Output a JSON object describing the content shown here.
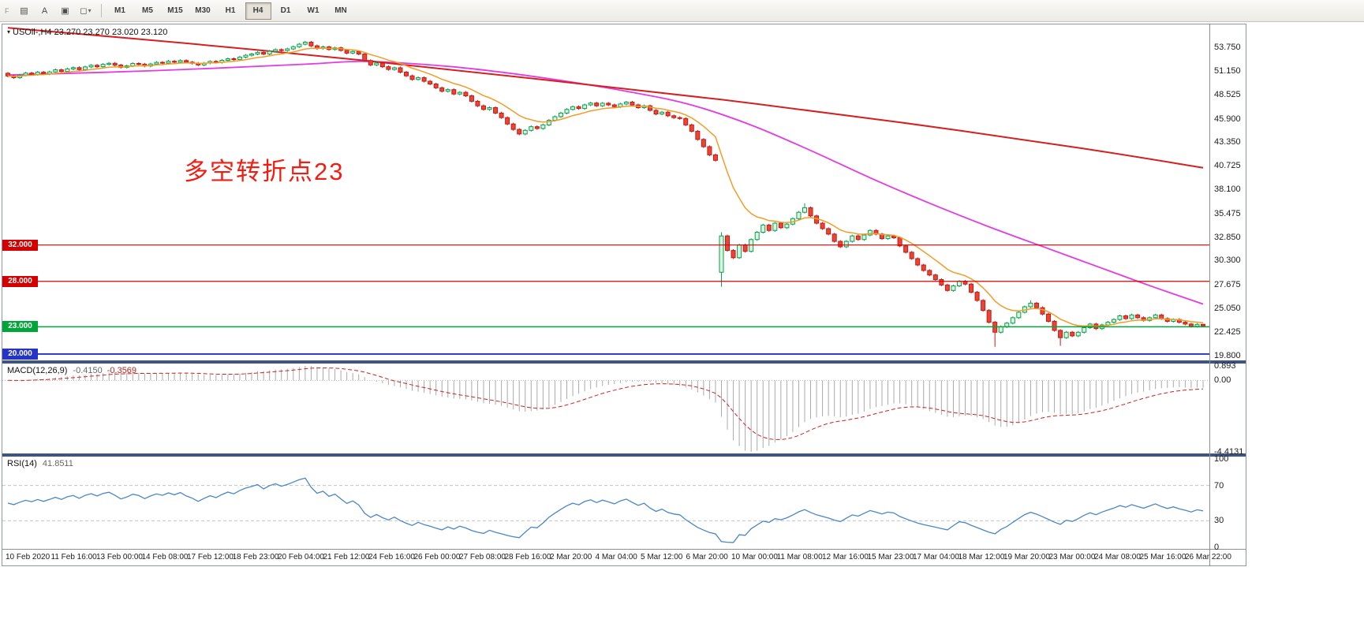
{
  "toolbar": {
    "handle_label": "F",
    "icon_buttons": [
      {
        "name": "objects-list-icon",
        "glyph": "▤"
      },
      {
        "name": "text-label-icon",
        "glyph": "A"
      },
      {
        "name": "text-box-icon",
        "glyph": "▣"
      },
      {
        "name": "shapes-dropdown-icon",
        "glyph": "◻",
        "caret": "▾"
      }
    ],
    "timeframes": [
      {
        "label": "M1"
      },
      {
        "label": "M5"
      },
      {
        "label": "M15"
      },
      {
        "label": "M30"
      },
      {
        "label": "H1"
      },
      {
        "label": "H4",
        "active": true
      },
      {
        "label": "D1"
      },
      {
        "label": "W1"
      },
      {
        "label": "MN"
      }
    ]
  },
  "chart_data": [
    {
      "type": "candlestick",
      "symbol": "USOil-",
      "timeframe": "H4",
      "main_title": {
        "marker": "▾",
        "text": "USOil-,H4  23.270 23.270 23.020 23.120"
      },
      "ohlc_quote": {
        "open": "23.270",
        "high": "23.270",
        "low": "23.020",
        "close": "23.120"
      },
      "annotation": {
        "text": "多空转折点23",
        "color": "#f21d12"
      },
      "ylim": [
        19.3,
        56.1
      ],
      "y_ticks": [
        "53.750",
        "51.150",
        "48.525",
        "45.900",
        "43.350",
        "40.725",
        "38.100",
        "35.475",
        "32.850",
        "30.300",
        "27.675",
        "25.050",
        "22.425",
        "19.800"
      ],
      "x_labels": [
        "10 Feb 2020",
        "11 Feb 16:00",
        "13 Feb 00:00",
        "14 Feb 08:00",
        "17 Feb 12:00",
        "18 Feb 23:00",
        "20 Feb 04:00",
        "21 Feb 12:00",
        "24 Feb 16:00",
        "26 Feb 00:00",
        "27 Feb 08:00",
        "28 Feb 16:00",
        "2 Mar 20:00",
        "4 Mar 04:00",
        "5 Mar 12:00",
        "6 Mar 20:00",
        "10 Mar 00:00",
        "11 Mar 08:00",
        "12 Mar 16:00",
        "15 Mar 23:00",
        "17 Mar 04:00",
        "18 Mar 12:00",
        "19 Mar 20:00",
        "23 Mar 00:00",
        "24 Mar 08:00",
        "25 Mar 16:00",
        "26 Mar 22:00"
      ],
      "levels": [
        {
          "price": 32.0,
          "label": "32.000",
          "color": "#d40000",
          "width": 1.2
        },
        {
          "price": 28.0,
          "label": "28.000",
          "color": "#d40000",
          "width": 1.2
        },
        {
          "price": 23.0,
          "label": "23.000",
          "color": "#00a637",
          "width": 1.6
        },
        {
          "price": 20.0,
          "label": "20.000",
          "color": "#2633c8",
          "width": 1.8
        }
      ],
      "colors": {
        "up_stroke": "#0b9e4d",
        "up_fill": "#d9f5e1",
        "down_stroke": "#c41a10",
        "down_fill": "#e8463a",
        "ma_fast": "#f09d28",
        "ma_mid": "#e23ce2",
        "ma_slow": "#d42020"
      },
      "moving_averages": [
        {
          "name": "fast-ma",
          "type": "ema",
          "period": 10
        },
        {
          "name": "mid-ma",
          "type": "points",
          "points": [
            [
              0,
              50.7
            ],
            [
              25,
              51.2
            ],
            [
              50,
              51.9
            ],
            [
              60,
              52.2
            ],
            [
              75,
              51.6
            ],
            [
              90,
              50.4
            ],
            [
              105,
              48.8
            ],
            [
              115,
              47.4
            ],
            [
              125,
              45.2
            ],
            [
              135,
              42.4
            ],
            [
              145,
              39.4
            ],
            [
              155,
              36.6
            ],
            [
              165,
              34.0
            ],
            [
              175,
              31.6
            ],
            [
              185,
              29.2
            ],
            [
              193,
              27.3
            ],
            [
              201,
              25.5
            ]
          ]
        },
        {
          "name": "slow-ma",
          "type": "points",
          "points": [
            [
              0,
              55.9
            ],
            [
              30,
              54.2
            ],
            [
              60,
              52.3
            ],
            [
              90,
              50.2
            ],
            [
              120,
              48.0
            ],
            [
              150,
              45.5
            ],
            [
              180,
              42.7
            ],
            [
              201,
              40.5
            ]
          ]
        }
      ],
      "candles": {
        "first_open": 50.9,
        "default_wick": 0.14,
        "closes": [
          50.6,
          50.42,
          50.7,
          50.92,
          50.78,
          51.02,
          50.84,
          51.05,
          51.28,
          51.1,
          51.38,
          51.52,
          51.3,
          51.6,
          51.78,
          51.62,
          51.88,
          52.0,
          51.8,
          51.55,
          51.72,
          51.98,
          51.9,
          51.7,
          51.92,
          52.1,
          52.02,
          52.22,
          52.12,
          52.3,
          52.12,
          52.0,
          51.82,
          52.02,
          52.2,
          52.1,
          52.32,
          52.5,
          52.42,
          52.68,
          52.88,
          53.02,
          53.2,
          53.02,
          53.32,
          53.5,
          53.4,
          53.58,
          53.82,
          54.1,
          54.32,
          53.92,
          53.62,
          53.8,
          53.52,
          53.7,
          53.42,
          53.12,
          53.3,
          53.02,
          52.3,
          51.82,
          52.02,
          51.62,
          51.32,
          51.5,
          51.02,
          50.62,
          50.22,
          50.42,
          50.02,
          49.72,
          49.3,
          48.92,
          49.1,
          48.62,
          48.8,
          48.42,
          47.82,
          47.32,
          46.92,
          47.12,
          46.52,
          46.02,
          45.32,
          44.72,
          44.22,
          44.62,
          45.02,
          44.82,
          45.22,
          45.72,
          46.12,
          46.52,
          46.92,
          47.22,
          47.02,
          47.42,
          47.62,
          47.32,
          47.6,
          47.42,
          47.22,
          47.52,
          47.72,
          47.42,
          47.12,
          47.32,
          46.82,
          46.42,
          46.62,
          46.22,
          46.02,
          45.92,
          45.22,
          44.52,
          43.62,
          42.82,
          41.92,
          41.32,
          33.0,
          31.4,
          30.6,
          32.0,
          31.3,
          32.6,
          33.4,
          34.2,
          33.6,
          34.4,
          33.9,
          34.3,
          34.9,
          35.6,
          36.1,
          35.2,
          34.4,
          33.8,
          33.2,
          32.4,
          31.8,
          32.4,
          33.0,
          32.6,
          33.1,
          33.6,
          33.2,
          32.7,
          33.0,
          32.8,
          31.9,
          31.2,
          30.5,
          29.8,
          29.2,
          28.7,
          28.2,
          27.6,
          27.0,
          27.5,
          28.0,
          27.7,
          26.8,
          25.9,
          24.8,
          23.5,
          22.4,
          23.0,
          23.4,
          24.0,
          24.6,
          25.2,
          25.6,
          25.1,
          24.4,
          23.6,
          22.6,
          21.8,
          22.4,
          22.0,
          22.4,
          22.9,
          23.3,
          22.8,
          23.2,
          23.5,
          23.8,
          24.2,
          23.9,
          24.3,
          24.0,
          23.7,
          24.0,
          24.3,
          23.9,
          23.6,
          23.8,
          23.5,
          23.3,
          23.05,
          23.27,
          23.12
        ],
        "open_overrides": {
          "120": 29.0,
          "201": 23.27
        },
        "high_overrides": {
          "120": 33.4,
          "134": 36.6,
          "172": 25.9,
          "201": 23.27
        },
        "low_overrides": {
          "120": 27.4,
          "166": 20.8,
          "177": 20.9,
          "201": 23.02
        }
      }
    },
    {
      "type": "macd-histogram",
      "label": "MACD(12,26,9)",
      "values_text": [
        "-0.4150",
        "-0.3569"
      ],
      "params": [
        12,
        26,
        9
      ],
      "ylim": [
        -4.4131,
        0.893
      ],
      "y_ticks": [
        "0.893",
        "0.00",
        "-4.4131"
      ],
      "colors": {
        "histogram": "#a9a9a9",
        "signal": "#cc2222",
        "zero_line": "#bdbdbd"
      },
      "derived_from": "chart_data.0.candles.closes"
    },
    {
      "type": "line",
      "label": "RSI(14)",
      "value_text": "41.8511",
      "period": 14,
      "ylim": [
        0,
        100
      ],
      "y_ticks": [
        "100",
        "70",
        "30",
        "0"
      ],
      "level_lines": [
        70,
        30
      ],
      "colors": {
        "line": "#4a86c8",
        "levels": "#c4c4c4"
      },
      "derived_from": "chart_data.0.candles.closes"
    }
  ]
}
